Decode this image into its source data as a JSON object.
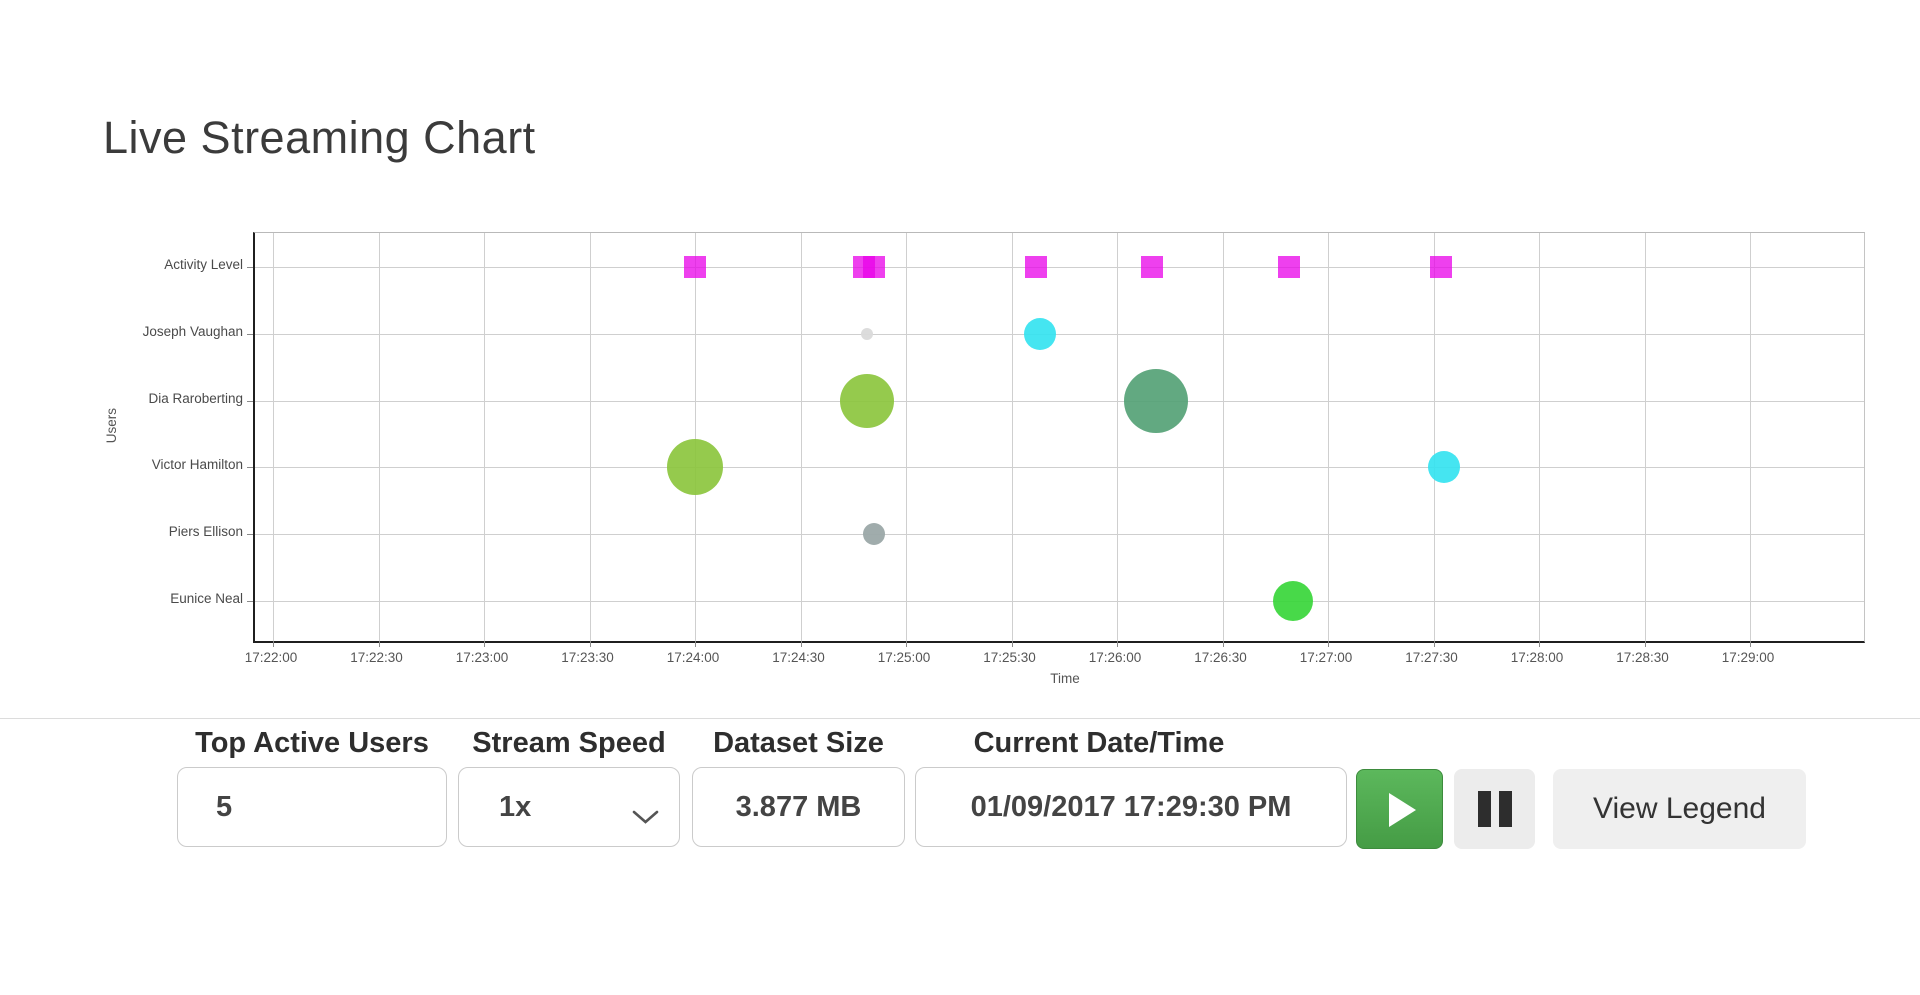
{
  "page": {
    "title": "Live Streaming Chart"
  },
  "chart_data": {
    "type": "scatter",
    "title": "Live Streaming Chart",
    "xlabel": "Time",
    "ylabel": "Users",
    "grid": true,
    "legend_position": "hidden",
    "x_range": [
      "17:22:00",
      "17:29:00"
    ],
    "x_ticks": [
      "17:22:00",
      "17:22:30",
      "17:23:00",
      "17:23:30",
      "17:24:00",
      "17:24:30",
      "17:25:00",
      "17:25:30",
      "17:26:00",
      "17:26:30",
      "17:27:00",
      "17:27:30",
      "17:28:00",
      "17:28:30",
      "17:29:00"
    ],
    "y_categories": [
      "Activity Level",
      "Joseph Vaughan",
      "Dia Raroberting",
      "Victor Hamilton",
      "Piers Ellison",
      "Eunice Neal"
    ],
    "series": [
      {
        "name": "Activity Level",
        "marker": "square",
        "color": "#E800E8",
        "opacity": 0.75,
        "points": [
          {
            "time": "17:24:00",
            "size": 22
          },
          {
            "time": "17:24:48",
            "size": 22
          },
          {
            "time": "17:24:51",
            "size": 22
          },
          {
            "time": "17:25:37",
            "size": 22
          },
          {
            "time": "17:26:10",
            "size": 22
          },
          {
            "time": "17:26:49",
            "size": 22
          },
          {
            "time": "17:27:32",
            "size": 22
          }
        ]
      },
      {
        "name": "Joseph Vaughan",
        "marker": "circle",
        "points": [
          {
            "time": "17:24:49",
            "radius": 6,
            "color": "#DADADA",
            "opacity": 0.95
          },
          {
            "time": "17:25:38",
            "radius": 16,
            "color": "#35E3F0",
            "opacity": 0.92
          }
        ]
      },
      {
        "name": "Dia Raroberting",
        "marker": "circle",
        "points": [
          {
            "time": "17:24:49",
            "radius": 27,
            "color": "#8CC63E",
            "opacity": 0.92
          },
          {
            "time": "17:26:11",
            "radius": 32,
            "color": "#55A276",
            "opacity": 0.92
          }
        ]
      },
      {
        "name": "Victor Hamilton",
        "marker": "circle",
        "points": [
          {
            "time": "17:24:00",
            "radius": 28,
            "color": "#8CC63E",
            "opacity": 0.92
          },
          {
            "time": "17:27:33",
            "radius": 16,
            "color": "#35E3F0",
            "opacity": 0.92
          }
        ]
      },
      {
        "name": "Piers Ellison",
        "marker": "circle",
        "points": [
          {
            "time": "17:24:51",
            "radius": 11,
            "color": "#9BA8A8",
            "opacity": 0.95
          }
        ]
      },
      {
        "name": "Eunice Neal",
        "marker": "circle",
        "points": [
          {
            "time": "17:26:50",
            "radius": 20,
            "color": "#38D63A",
            "opacity": 0.92
          }
        ]
      }
    ]
  },
  "controls": {
    "top_active_users": {
      "label": "Top Active Users",
      "value": "5"
    },
    "stream_speed": {
      "label": "Stream Speed",
      "value": "1x"
    },
    "dataset_size": {
      "label": "Dataset Size",
      "value": "3.877 MB"
    },
    "current_datetime": {
      "label": "Current Date/Time",
      "value": "01/09/2017 17:29:30 PM"
    },
    "view_legend_label": "View Legend"
  },
  "colors": {
    "play_button_green": "#4CAF50",
    "activity_magenta": "#E800E8",
    "divider_gray": "#DCDCDC"
  }
}
